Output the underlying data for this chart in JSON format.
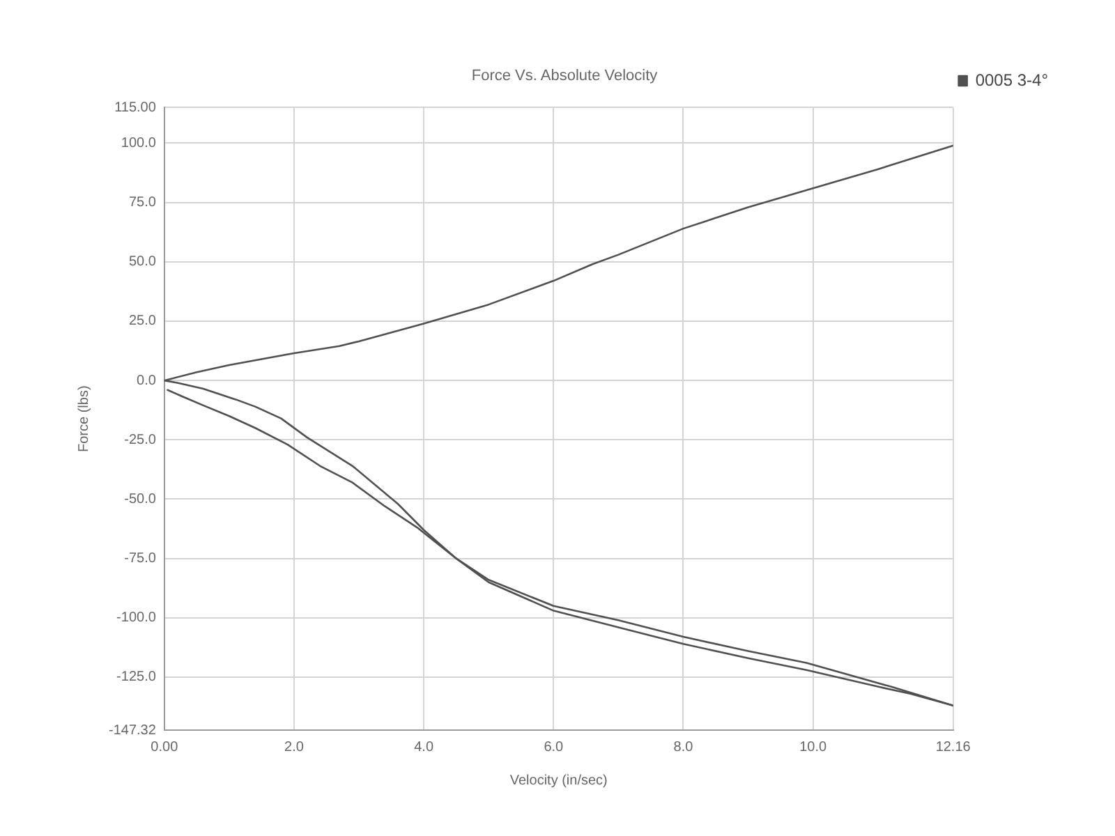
{
  "chart_data": {
    "type": "line",
    "title": "Force Vs. Absolute Velocity",
    "xlabel": "Velocity (in/sec)",
    "ylabel": "Force (lbs)",
    "series": [
      {
        "name": "0005 3-4°",
        "color": "#505050",
        "x": [
          0,
          0.5,
          1,
          2,
          2.7,
          3,
          4,
          5,
          6,
          6.6,
          7,
          8,
          9,
          10,
          11,
          12.16
        ],
        "values": [
          0,
          3.5,
          6.5,
          11.5,
          14.5,
          16.5,
          24,
          32,
          42,
          49,
          53,
          64,
          73,
          81,
          89,
          99
        ]
      },
      {
        "color": "#505050",
        "x": [
          0,
          0.2,
          0.6,
          1.1,
          1.4,
          1.8,
          2.2,
          2.9,
          3.6,
          4,
          4.5,
          5,
          6,
          7,
          8,
          9,
          9.9,
          11,
          11.5,
          12.16
        ],
        "values": [
          0,
          -1,
          -3.5,
          -8,
          -11,
          -16,
          -24,
          -36,
          -52,
          -63,
          -75,
          -85,
          -97,
          -104,
          -111,
          -117,
          -122,
          -129,
          -132,
          -137
        ]
      },
      {
        "color": "#505050",
        "x": [
          0.05,
          0.3,
          0.6,
          1,
          1.4,
          1.9,
          2.4,
          2.9,
          3.4,
          3.9,
          4.5,
          5,
          6,
          7,
          8,
          9,
          9.9,
          11.2,
          12.16
        ],
        "values": [
          -4,
          -7,
          -10.5,
          -15,
          -20,
          -27,
          -36,
          -43,
          -53,
          -62,
          -75,
          -84,
          -95,
          -101,
          -108,
          -114,
          -119,
          -129,
          -137
        ]
      }
    ],
    "xlim": [
      0,
      12.16
    ],
    "ylim": [
      -147.32,
      115
    ],
    "xticks": [
      {
        "value": 0,
        "label": "0.00"
      },
      {
        "value": 2,
        "label": "2.0"
      },
      {
        "value": 4,
        "label": "4.0"
      },
      {
        "value": 6,
        "label": "6.0"
      },
      {
        "value": 8,
        "label": "8.0"
      },
      {
        "value": 10,
        "label": "10.0"
      },
      12.16
    ],
    "yticks": [
      -147.32,
      {
        "value": -125,
        "label": "-125.0"
      },
      {
        "value": -100,
        "label": "-100.0"
      },
      {
        "value": -75,
        "label": "-75.0"
      },
      {
        "value": -50,
        "label": "-50.0"
      },
      {
        "value": -25,
        "label": "-25.0"
      },
      {
        "value": 0,
        "label": "0.0"
      },
      {
        "value": 25,
        "label": "25.0"
      },
      {
        "value": 50,
        "label": "50.0"
      },
      {
        "value": 75,
        "label": "75.0"
      },
      {
        "value": 100,
        "label": "100.0"
      },
      {
        "value": 115,
        "label": "115.00"
      }
    ],
    "grid": true,
    "legend": "top right"
  }
}
